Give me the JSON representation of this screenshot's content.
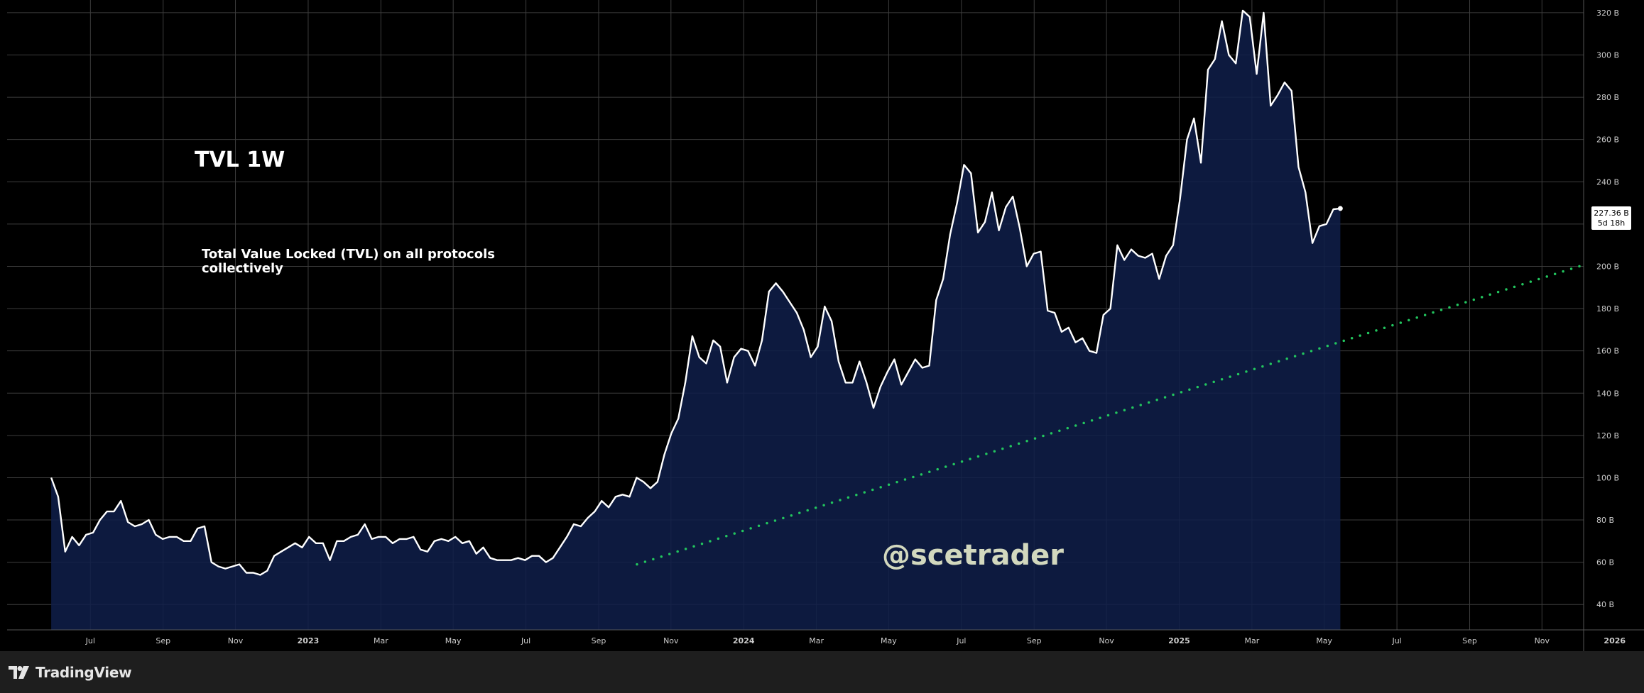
{
  "chart_data": {
    "type": "area",
    "title": "TVL 1W",
    "subtitle": "Total Value Locked (TVL) on all protocols collectively",
    "watermark": "@scetrader",
    "ylim": [
      28,
      326
    ],
    "y_ticks": [
      {
        "value": 40,
        "label": "40 B"
      },
      {
        "value": 60,
        "label": "60 B"
      },
      {
        "value": 80,
        "label": "80 B"
      },
      {
        "value": 100,
        "label": "100 B"
      },
      {
        "value": 120,
        "label": "120 B"
      },
      {
        "value": 140,
        "label": "140 B"
      },
      {
        "value": 160,
        "label": "160 B"
      },
      {
        "value": 180,
        "label": "180 B"
      },
      {
        "value": 200,
        "label": "200 B"
      },
      {
        "value": 220,
        "label": "220 B"
      },
      {
        "value": 240,
        "label": "240 B"
      },
      {
        "value": 260,
        "label": "260 B"
      },
      {
        "value": 280,
        "label": "280 B"
      },
      {
        "value": 300,
        "label": "300 B"
      },
      {
        "value": 320,
        "label": "320 B"
      }
    ],
    "x_ticks": [
      {
        "label": "Jul",
        "x": 2022.5
      },
      {
        "label": "Sep",
        "x": 2022.667
      },
      {
        "label": "Nov",
        "x": 2022.833
      },
      {
        "label": "2023",
        "x": 2023.0
      },
      {
        "label": "Mar",
        "x": 2023.167
      },
      {
        "label": "May",
        "x": 2023.333
      },
      {
        "label": "Jul",
        "x": 2023.5
      },
      {
        "label": "Sep",
        "x": 2023.667
      },
      {
        "label": "Nov",
        "x": 2023.833
      },
      {
        "label": "2024",
        "x": 2024.0
      },
      {
        "label": "Mar",
        "x": 2024.167
      },
      {
        "label": "May",
        "x": 2024.333
      },
      {
        "label": "Jul",
        "x": 2024.5
      },
      {
        "label": "Sep",
        "x": 2024.667
      },
      {
        "label": "Nov",
        "x": 2024.833
      },
      {
        "label": "2025",
        "x": 2025.0
      },
      {
        "label": "Mar",
        "x": 2025.167
      },
      {
        "label": "May",
        "x": 2025.333
      },
      {
        "label": "Jul",
        "x": 2025.5
      },
      {
        "label": "Sep",
        "x": 2025.667
      },
      {
        "label": "Nov",
        "x": 2025.833
      },
      {
        "label": "2026",
        "x": 2026.0
      }
    ],
    "series": [
      {
        "values": [
          [
            2022.41,
            100
          ],
          [
            2022.426,
            91
          ],
          [
            2022.442,
            65
          ],
          [
            2022.458,
            72
          ],
          [
            2022.474,
            68
          ],
          [
            2022.49,
            73
          ],
          [
            2022.506,
            74
          ],
          [
            2022.522,
            80
          ],
          [
            2022.538,
            84
          ],
          [
            2022.554,
            84
          ],
          [
            2022.57,
            89
          ],
          [
            2022.586,
            79
          ],
          [
            2022.602,
            77
          ],
          [
            2022.618,
            78
          ],
          [
            2022.634,
            80
          ],
          [
            2022.65,
            73
          ],
          [
            2022.666,
            71
          ],
          [
            2022.682,
            72
          ],
          [
            2022.698,
            72
          ],
          [
            2022.714,
            70
          ],
          [
            2022.73,
            70
          ],
          [
            2022.746,
            76
          ],
          [
            2022.762,
            77
          ],
          [
            2022.778,
            60
          ],
          [
            2022.794,
            58
          ],
          [
            2022.81,
            57
          ],
          [
            2022.826,
            58
          ],
          [
            2022.842,
            59
          ],
          [
            2022.858,
            55
          ],
          [
            2022.874,
            55
          ],
          [
            2022.89,
            54
          ],
          [
            2022.906,
            56
          ],
          [
            2022.922,
            63
          ],
          [
            2022.938,
            65
          ],
          [
            2022.954,
            67
          ],
          [
            2022.97,
            69
          ],
          [
            2022.986,
            67
          ],
          [
            2023.002,
            72
          ],
          [
            2023.018,
            69
          ],
          [
            2023.034,
            69
          ],
          [
            2023.05,
            61
          ],
          [
            2023.066,
            70
          ],
          [
            2023.082,
            70
          ],
          [
            2023.098,
            72
          ],
          [
            2023.114,
            73
          ],
          [
            2023.13,
            78
          ],
          [
            2023.146,
            71
          ],
          [
            2023.162,
            72
          ],
          [
            2023.178,
            72
          ],
          [
            2023.194,
            69
          ],
          [
            2023.21,
            71
          ],
          [
            2023.226,
            71
          ],
          [
            2023.242,
            72
          ],
          [
            2023.258,
            66
          ],
          [
            2023.274,
            65
          ],
          [
            2023.29,
            70
          ],
          [
            2023.306,
            71
          ],
          [
            2023.322,
            70
          ],
          [
            2023.338,
            72
          ],
          [
            2023.354,
            69
          ],
          [
            2023.37,
            70
          ],
          [
            2023.386,
            64
          ],
          [
            2023.402,
            67
          ],
          [
            2023.418,
            62
          ],
          [
            2023.434,
            61
          ],
          [
            2023.45,
            61
          ],
          [
            2023.466,
            61
          ],
          [
            2023.482,
            62
          ],
          [
            2023.498,
            61
          ],
          [
            2023.514,
            63
          ],
          [
            2023.53,
            63
          ],
          [
            2023.546,
            60
          ],
          [
            2023.562,
            62
          ],
          [
            2023.578,
            67
          ],
          [
            2023.594,
            72
          ],
          [
            2023.61,
            78
          ],
          [
            2023.626,
            77
          ],
          [
            2023.642,
            81
          ],
          [
            2023.658,
            84
          ],
          [
            2023.674,
            89
          ],
          [
            2023.69,
            86
          ],
          [
            2023.706,
            91
          ],
          [
            2023.722,
            92
          ],
          [
            2023.738,
            91
          ],
          [
            2023.754,
            100
          ],
          [
            2023.77,
            98
          ],
          [
            2023.786,
            95
          ],
          [
            2023.802,
            98
          ],
          [
            2023.818,
            111
          ],
          [
            2023.834,
            121
          ],
          [
            2023.85,
            128
          ],
          [
            2023.866,
            145
          ],
          [
            2023.882,
            167
          ],
          [
            2023.898,
            157
          ],
          [
            2023.914,
            154
          ],
          [
            2023.93,
            165
          ],
          [
            2023.946,
            162
          ],
          [
            2023.962,
            145
          ],
          [
            2023.978,
            157
          ],
          [
            2023.994,
            161
          ],
          [
            2024.01,
            160
          ],
          [
            2024.026,
            153
          ],
          [
            2024.042,
            165
          ],
          [
            2024.058,
            188
          ],
          [
            2024.074,
            192
          ],
          [
            2024.09,
            188
          ],
          [
            2024.106,
            183
          ],
          [
            2024.122,
            178
          ],
          [
            2024.138,
            170
          ],
          [
            2024.154,
            157
          ],
          [
            2024.17,
            162
          ],
          [
            2024.186,
            181
          ],
          [
            2024.202,
            174
          ],
          [
            2024.218,
            155
          ],
          [
            2024.234,
            145
          ],
          [
            2024.25,
            145
          ],
          [
            2024.266,
            155
          ],
          [
            2024.282,
            145
          ],
          [
            2024.298,
            133
          ],
          [
            2024.314,
            143
          ],
          [
            2024.33,
            150
          ],
          [
            2024.346,
            156
          ],
          [
            2024.362,
            144
          ],
          [
            2024.378,
            150
          ],
          [
            2024.394,
            156
          ],
          [
            2024.41,
            152
          ],
          [
            2024.426,
            153
          ],
          [
            2024.442,
            184
          ],
          [
            2024.458,
            194
          ],
          [
            2024.474,
            215
          ],
          [
            2024.49,
            230
          ],
          [
            2024.506,
            248
          ],
          [
            2024.522,
            244
          ],
          [
            2024.538,
            216
          ],
          [
            2024.554,
            221
          ],
          [
            2024.57,
            235
          ],
          [
            2024.586,
            217
          ],
          [
            2024.602,
            228
          ],
          [
            2024.618,
            233
          ],
          [
            2024.634,
            218
          ],
          [
            2024.65,
            200
          ],
          [
            2024.666,
            206
          ],
          [
            2024.682,
            207
          ],
          [
            2024.698,
            179
          ],
          [
            2024.714,
            178
          ],
          [
            2024.73,
            169
          ],
          [
            2024.746,
            171
          ],
          [
            2024.762,
            164
          ],
          [
            2024.778,
            166
          ],
          [
            2024.794,
            160
          ],
          [
            2024.81,
            159
          ],
          [
            2024.826,
            177
          ],
          [
            2024.842,
            180
          ],
          [
            2024.858,
            210
          ],
          [
            2024.874,
            203
          ],
          [
            2024.89,
            208
          ],
          [
            2024.906,
            205
          ],
          [
            2024.922,
            204
          ],
          [
            2024.938,
            206
          ],
          [
            2024.954,
            194
          ],
          [
            2024.97,
            205
          ],
          [
            2024.986,
            210
          ],
          [
            2025.002,
            232
          ],
          [
            2025.018,
            260
          ],
          [
            2025.034,
            270
          ],
          [
            2025.05,
            249
          ],
          [
            2025.066,
            293
          ],
          [
            2025.082,
            298
          ],
          [
            2025.098,
            316
          ],
          [
            2025.114,
            300
          ],
          [
            2025.13,
            296
          ],
          [
            2025.146,
            321
          ],
          [
            2025.162,
            318
          ],
          [
            2025.178,
            291
          ],
          [
            2025.194,
            320
          ],
          [
            2025.21,
            276
          ],
          [
            2025.226,
            281
          ],
          [
            2025.242,
            287
          ],
          [
            2025.258,
            283
          ],
          [
            2025.274,
            247
          ],
          [
            2025.29,
            235
          ],
          [
            2025.306,
            211
          ],
          [
            2025.322,
            219
          ],
          [
            2025.338,
            220
          ],
          [
            2025.354,
            227
          ],
          [
            2025.37,
            227.36
          ]
        ]
      }
    ],
    "trendline": {
      "style": "dotted",
      "color": "#22c55e",
      "start": [
        2023.755,
        59
      ],
      "end": [
        2025.995,
        205
      ]
    },
    "last_value_label": "227.36 B",
    "last_value_sublabel": "5d 18h",
    "grid": true,
    "colors": {
      "background": "#000000",
      "line": "#ffffff",
      "fill": "#0f1e4a",
      "grid": "#3d3d3d",
      "trendline": "#22c55e",
      "axis_text": "#cccccc",
      "watermark": "#d2d8be"
    }
  },
  "footer": {
    "brand": "TradingView",
    "icon": "tradingview-logo-icon"
  }
}
